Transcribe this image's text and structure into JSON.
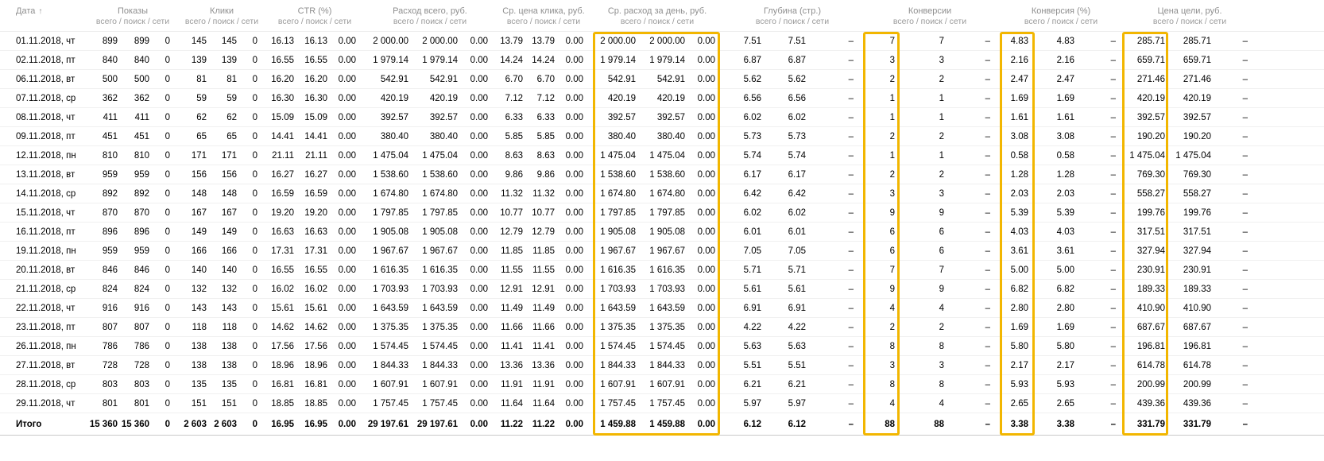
{
  "table": {
    "date_header": "Дата",
    "sort_arrow": "↑",
    "highlight_color": "#f2b600",
    "groups": [
      {
        "name": "Показы",
        "sub": "всего / поиск / сети"
      },
      {
        "name": "Клики",
        "sub": "всего / поиск / сети"
      },
      {
        "name": "CTR (%)",
        "sub": "всего / поиск / сети"
      },
      {
        "name": "Расход всего, руб.",
        "sub": "всего / поиск / сети"
      },
      {
        "name": "Ср. цена клика, руб.",
        "sub": "всего / поиск / сети"
      },
      {
        "name": "Ср. расход за день, руб.",
        "sub": "всего / поиск / сети"
      },
      {
        "name": "Глубина (стр.)",
        "sub": "всего / поиск / сети"
      },
      {
        "name": "Конверсии",
        "sub": "всего / поиск / сети"
      },
      {
        "name": "Конверсия (%)",
        "sub": "всего / поиск / сети"
      },
      {
        "name": "Цена цели, руб.",
        "sub": "всего / поиск / сети"
      }
    ],
    "rows": [
      {
        "date": "01.11.2018, чт",
        "v": [
          "899",
          "899",
          "0",
          "145",
          "145",
          "0",
          "16.13",
          "16.13",
          "0.00",
          "2 000.00",
          "2 000.00",
          "0.00",
          "13.79",
          "13.79",
          "0.00",
          "2 000.00",
          "2 000.00",
          "0.00",
          "7.51",
          "7.51",
          "–",
          "7",
          "7",
          "–",
          "4.83",
          "4.83",
          "–",
          "285.71",
          "285.71",
          "–"
        ]
      },
      {
        "date": "02.11.2018, пт",
        "v": [
          "840",
          "840",
          "0",
          "139",
          "139",
          "0",
          "16.55",
          "16.55",
          "0.00",
          "1 979.14",
          "1 979.14",
          "0.00",
          "14.24",
          "14.24",
          "0.00",
          "1 979.14",
          "1 979.14",
          "0.00",
          "6.87",
          "6.87",
          "–",
          "3",
          "3",
          "–",
          "2.16",
          "2.16",
          "–",
          "659.71",
          "659.71",
          "–"
        ]
      },
      {
        "date": "06.11.2018, вт",
        "v": [
          "500",
          "500",
          "0",
          "81",
          "81",
          "0",
          "16.20",
          "16.20",
          "0.00",
          "542.91",
          "542.91",
          "0.00",
          "6.70",
          "6.70",
          "0.00",
          "542.91",
          "542.91",
          "0.00",
          "5.62",
          "5.62",
          "–",
          "2",
          "2",
          "–",
          "2.47",
          "2.47",
          "–",
          "271.46",
          "271.46",
          "–"
        ]
      },
      {
        "date": "07.11.2018, ср",
        "v": [
          "362",
          "362",
          "0",
          "59",
          "59",
          "0",
          "16.30",
          "16.30",
          "0.00",
          "420.19",
          "420.19",
          "0.00",
          "7.12",
          "7.12",
          "0.00",
          "420.19",
          "420.19",
          "0.00",
          "6.56",
          "6.56",
          "–",
          "1",
          "1",
          "–",
          "1.69",
          "1.69",
          "–",
          "420.19",
          "420.19",
          "–"
        ]
      },
      {
        "date": "08.11.2018, чт",
        "v": [
          "411",
          "411",
          "0",
          "62",
          "62",
          "0",
          "15.09",
          "15.09",
          "0.00",
          "392.57",
          "392.57",
          "0.00",
          "6.33",
          "6.33",
          "0.00",
          "392.57",
          "392.57",
          "0.00",
          "6.02",
          "6.02",
          "–",
          "1",
          "1",
          "–",
          "1.61",
          "1.61",
          "–",
          "392.57",
          "392.57",
          "–"
        ]
      },
      {
        "date": "09.11.2018, пт",
        "v": [
          "451",
          "451",
          "0",
          "65",
          "65",
          "0",
          "14.41",
          "14.41",
          "0.00",
          "380.40",
          "380.40",
          "0.00",
          "5.85",
          "5.85",
          "0.00",
          "380.40",
          "380.40",
          "0.00",
          "5.73",
          "5.73",
          "–",
          "2",
          "2",
          "–",
          "3.08",
          "3.08",
          "–",
          "190.20",
          "190.20",
          "–"
        ]
      },
      {
        "date": "12.11.2018, пн",
        "v": [
          "810",
          "810",
          "0",
          "171",
          "171",
          "0",
          "21.11",
          "21.11",
          "0.00",
          "1 475.04",
          "1 475.04",
          "0.00",
          "8.63",
          "8.63",
          "0.00",
          "1 475.04",
          "1 475.04",
          "0.00",
          "5.74",
          "5.74",
          "–",
          "1",
          "1",
          "–",
          "0.58",
          "0.58",
          "–",
          "1 475.04",
          "1 475.04",
          "–"
        ]
      },
      {
        "date": "13.11.2018, вт",
        "v": [
          "959",
          "959",
          "0",
          "156",
          "156",
          "0",
          "16.27",
          "16.27",
          "0.00",
          "1 538.60",
          "1 538.60",
          "0.00",
          "9.86",
          "9.86",
          "0.00",
          "1 538.60",
          "1 538.60",
          "0.00",
          "6.17",
          "6.17",
          "–",
          "2",
          "2",
          "–",
          "1.28",
          "1.28",
          "–",
          "769.30",
          "769.30",
          "–"
        ]
      },
      {
        "date": "14.11.2018, ср",
        "v": [
          "892",
          "892",
          "0",
          "148",
          "148",
          "0",
          "16.59",
          "16.59",
          "0.00",
          "1 674.80",
          "1 674.80",
          "0.00",
          "11.32",
          "11.32",
          "0.00",
          "1 674.80",
          "1 674.80",
          "0.00",
          "6.42",
          "6.42",
          "–",
          "3",
          "3",
          "–",
          "2.03",
          "2.03",
          "–",
          "558.27",
          "558.27",
          "–"
        ]
      },
      {
        "date": "15.11.2018, чт",
        "v": [
          "870",
          "870",
          "0",
          "167",
          "167",
          "0",
          "19.20",
          "19.20",
          "0.00",
          "1 797.85",
          "1 797.85",
          "0.00",
          "10.77",
          "10.77",
          "0.00",
          "1 797.85",
          "1 797.85",
          "0.00",
          "6.02",
          "6.02",
          "–",
          "9",
          "9",
          "–",
          "5.39",
          "5.39",
          "–",
          "199.76",
          "199.76",
          "–"
        ]
      },
      {
        "date": "16.11.2018, пт",
        "v": [
          "896",
          "896",
          "0",
          "149",
          "149",
          "0",
          "16.63",
          "16.63",
          "0.00",
          "1 905.08",
          "1 905.08",
          "0.00",
          "12.79",
          "12.79",
          "0.00",
          "1 905.08",
          "1 905.08",
          "0.00",
          "6.01",
          "6.01",
          "–",
          "6",
          "6",
          "–",
          "4.03",
          "4.03",
          "–",
          "317.51",
          "317.51",
          "–"
        ]
      },
      {
        "date": "19.11.2018, пн",
        "v": [
          "959",
          "959",
          "0",
          "166",
          "166",
          "0",
          "17.31",
          "17.31",
          "0.00",
          "1 967.67",
          "1 967.67",
          "0.00",
          "11.85",
          "11.85",
          "0.00",
          "1 967.67",
          "1 967.67",
          "0.00",
          "7.05",
          "7.05",
          "–",
          "6",
          "6",
          "–",
          "3.61",
          "3.61",
          "–",
          "327.94",
          "327.94",
          "–"
        ]
      },
      {
        "date": "20.11.2018, вт",
        "v": [
          "846",
          "846",
          "0",
          "140",
          "140",
          "0",
          "16.55",
          "16.55",
          "0.00",
          "1 616.35",
          "1 616.35",
          "0.00",
          "11.55",
          "11.55",
          "0.00",
          "1 616.35",
          "1 616.35",
          "0.00",
          "5.71",
          "5.71",
          "–",
          "7",
          "7",
          "–",
          "5.00",
          "5.00",
          "–",
          "230.91",
          "230.91",
          "–"
        ]
      },
      {
        "date": "21.11.2018, ср",
        "v": [
          "824",
          "824",
          "0",
          "132",
          "132",
          "0",
          "16.02",
          "16.02",
          "0.00",
          "1 703.93",
          "1 703.93",
          "0.00",
          "12.91",
          "12.91",
          "0.00",
          "1 703.93",
          "1 703.93",
          "0.00",
          "5.61",
          "5.61",
          "–",
          "9",
          "9",
          "–",
          "6.82",
          "6.82",
          "–",
          "189.33",
          "189.33",
          "–"
        ]
      },
      {
        "date": "22.11.2018, чт",
        "v": [
          "916",
          "916",
          "0",
          "143",
          "143",
          "0",
          "15.61",
          "15.61",
          "0.00",
          "1 643.59",
          "1 643.59",
          "0.00",
          "11.49",
          "11.49",
          "0.00",
          "1 643.59",
          "1 643.59",
          "0.00",
          "6.91",
          "6.91",
          "–",
          "4",
          "4",
          "–",
          "2.80",
          "2.80",
          "–",
          "410.90",
          "410.90",
          "–"
        ]
      },
      {
        "date": "23.11.2018, пт",
        "v": [
          "807",
          "807",
          "0",
          "118",
          "118",
          "0",
          "14.62",
          "14.62",
          "0.00",
          "1 375.35",
          "1 375.35",
          "0.00",
          "11.66",
          "11.66",
          "0.00",
          "1 375.35",
          "1 375.35",
          "0.00",
          "4.22",
          "4.22",
          "–",
          "2",
          "2",
          "–",
          "1.69",
          "1.69",
          "–",
          "687.67",
          "687.67",
          "–"
        ]
      },
      {
        "date": "26.11.2018, пн",
        "v": [
          "786",
          "786",
          "0",
          "138",
          "138",
          "0",
          "17.56",
          "17.56",
          "0.00",
          "1 574.45",
          "1 574.45",
          "0.00",
          "11.41",
          "11.41",
          "0.00",
          "1 574.45",
          "1 574.45",
          "0.00",
          "5.63",
          "5.63",
          "–",
          "8",
          "8",
          "–",
          "5.80",
          "5.80",
          "–",
          "196.81",
          "196.81",
          "–"
        ]
      },
      {
        "date": "27.11.2018, вт",
        "v": [
          "728",
          "728",
          "0",
          "138",
          "138",
          "0",
          "18.96",
          "18.96",
          "0.00",
          "1 844.33",
          "1 844.33",
          "0.00",
          "13.36",
          "13.36",
          "0.00",
          "1 844.33",
          "1 844.33",
          "0.00",
          "5.51",
          "5.51",
          "–",
          "3",
          "3",
          "–",
          "2.17",
          "2.17",
          "–",
          "614.78",
          "614.78",
          "–"
        ]
      },
      {
        "date": "28.11.2018, ср",
        "v": [
          "803",
          "803",
          "0",
          "135",
          "135",
          "0",
          "16.81",
          "16.81",
          "0.00",
          "1 607.91",
          "1 607.91",
          "0.00",
          "11.91",
          "11.91",
          "0.00",
          "1 607.91",
          "1 607.91",
          "0.00",
          "6.21",
          "6.21",
          "–",
          "8",
          "8",
          "–",
          "5.93",
          "5.93",
          "–",
          "200.99",
          "200.99",
          "–"
        ]
      },
      {
        "date": "29.11.2018, чт",
        "v": [
          "801",
          "801",
          "0",
          "151",
          "151",
          "0",
          "18.85",
          "18.85",
          "0.00",
          "1 757.45",
          "1 757.45",
          "0.00",
          "11.64",
          "11.64",
          "0.00",
          "1 757.45",
          "1 757.45",
          "0.00",
          "5.97",
          "5.97",
          "–",
          "4",
          "4",
          "–",
          "2.65",
          "2.65",
          "–",
          "439.36",
          "439.36",
          "–"
        ]
      }
    ],
    "totals": [
      {
        "date": "Итого",
        "v": [
          "15 360",
          "15 360",
          "0",
          "2 603",
          "2 603",
          "0",
          "16.95",
          "16.95",
          "0.00",
          "29 197.61",
          "29 197.61",
          "0.00",
          "11.22",
          "11.22",
          "0.00",
          "1 459.88",
          "1 459.88",
          "0.00",
          "6.12",
          "6.12",
          "–",
          "88",
          "88",
          "–",
          "3.38",
          "3.38",
          "–",
          "331.79",
          "331.79",
          "–"
        ]
      }
    ]
  }
}
